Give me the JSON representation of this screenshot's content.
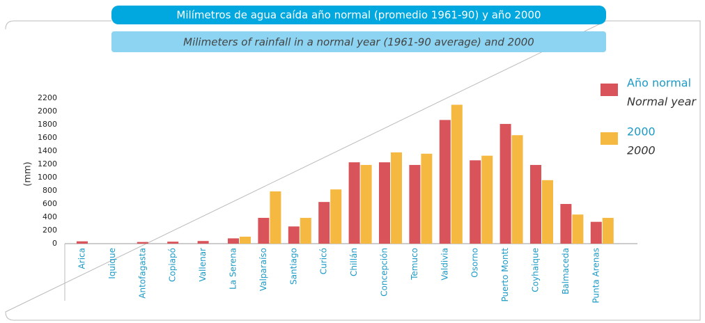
{
  "chart_data": {
    "type": "bar",
    "title": "Milímetros de agua caída año normal (promedio 1961-90) y año 2000",
    "subtitle": "Milimeters of rainfall in a normal year (1961-90 average) and 2000",
    "y_label": "(mm)",
    "categories": [
      "Arica",
      "Iquique",
      "Antofagasta",
      "Copiapó",
      "Vallenar",
      "La Serena",
      "Valparaíso",
      "Santiago",
      "Curicó",
      "Chillán",
      "Concepción",
      "Temuco",
      "Valdivia",
      "Osorno",
      "Puerto Montt",
      "Coyhaique",
      "Balmaceda",
      "Punta Arenas"
    ],
    "series": [
      {
        "name": "Año normal",
        "name_en": "Normal year",
        "color": "#d9545a",
        "values": [
          35,
          0,
          25,
          30,
          40,
          80,
          390,
          260,
          630,
          1230,
          1230,
          1190,
          1870,
          1260,
          1810,
          1190,
          600,
          330
        ]
      },
      {
        "name": "2000",
        "name_en": "2000",
        "color": "#f5b942",
        "values": [
          0,
          0,
          0,
          0,
          0,
          105,
          790,
          390,
          820,
          1190,
          1380,
          1360,
          2100,
          1330,
          1640,
          960,
          440,
          390
        ]
      }
    ],
    "ylim": [
      0,
      2200
    ],
    "yticks": [
      0,
      200,
      400,
      600,
      800,
      1000,
      1200,
      1400,
      1600,
      1800,
      2000,
      2200
    ]
  }
}
